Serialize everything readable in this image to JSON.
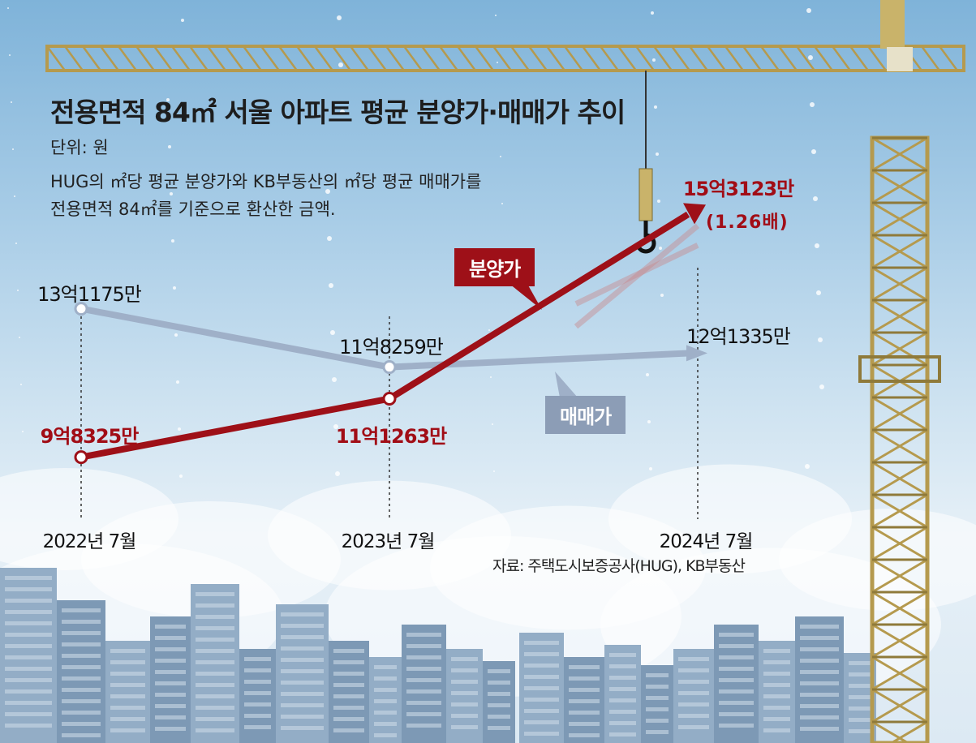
{
  "title": "전용면적 84㎡ 서울 아파트 평균 분양가·매매가 추이",
  "unit": "단위: 원",
  "note_line1": "HUG의 ㎡당 평균 분양가와 KB부동산의 ㎡당 평균 매매가를",
  "note_line2": "전용면적 84㎡를 기준으로 환산한 금액.",
  "source": "자료: 주택도시보증공사(HUG), KB부동산",
  "colors": {
    "sale_price": "#9e1018",
    "market_price": "#9fb0c8"
  },
  "chart_data": {
    "type": "line",
    "categories": [
      "2022년 7월",
      "2023년 7월",
      "2024년 7월"
    ],
    "series": [
      {
        "name": "분양가",
        "values": [
          983250000,
          1112630000,
          1531230000
        ],
        "labels": [
          "9억8325만",
          "11억1263만",
          "15억3123만"
        ],
        "multiplier_label": "(1.26배)"
      },
      {
        "name": "매매가",
        "values": [
          1311750000,
          1182590000,
          1213350000
        ],
        "labels": [
          "13억1175만",
          "11억8259만",
          "12억1335만"
        ]
      }
    ]
  }
}
